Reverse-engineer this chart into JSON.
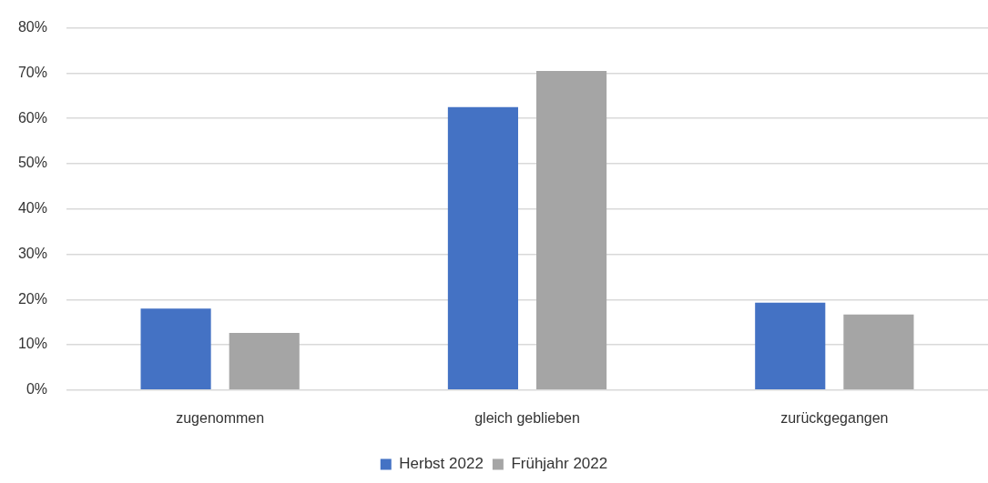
{
  "chart_data": {
    "type": "bar",
    "categories": [
      "zugenommen",
      "gleich geblieben",
      "zurückgegangen"
    ],
    "series": [
      {
        "name": "Herbst 2022",
        "color": "#4472c4",
        "values": [
          18.0,
          62.5,
          19.3
        ]
      },
      {
        "name": "Frühjahr 2022",
        "color": "#a5a5a5",
        "values": [
          12.6,
          70.5,
          16.7
        ]
      }
    ],
    "ylim": [
      0,
      80
    ],
    "yticks": [
      {
        "value": 0,
        "label": "0%"
      },
      {
        "value": 10,
        "label": "10%"
      },
      {
        "value": 20,
        "label": "20%"
      },
      {
        "value": 30,
        "label": "30%"
      },
      {
        "value": 40,
        "label": "40%"
      },
      {
        "value": 50,
        "label": "50%"
      },
      {
        "value": 60,
        "label": "60%"
      },
      {
        "value": 70,
        "label": "70%"
      },
      {
        "value": 80,
        "label": "80%"
      }
    ],
    "grid": "y",
    "legend": "bottom"
  }
}
